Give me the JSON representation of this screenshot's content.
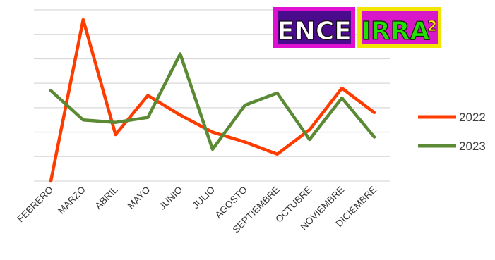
{
  "chart_data": {
    "type": "line",
    "categories": [
      "FEBRERO",
      "MARZO",
      "ABRIL",
      "MAYO",
      "JUNIO",
      "JULIO",
      "AGOSTO",
      "SEPTIEMBRE",
      "OCTUBRE",
      "NOVIEMBRE",
      "DICIEMBRE"
    ],
    "series": [
      {
        "name": "2022",
        "color": "#ff3c00",
        "values": [
          0,
          66,
          19,
          35,
          27,
          20,
          16,
          11,
          21,
          38,
          28
        ]
      },
      {
        "name": "2023",
        "color": "#5b8a35",
        "values": [
          37,
          25,
          24,
          26,
          52,
          13,
          31,
          36,
          17,
          34,
          18
        ]
      }
    ],
    "ylim": [
      0,
      70
    ],
    "grid": true,
    "legend_position": "right"
  },
  "logo": {
    "word1": "ENCE",
    "word2": "IRRA",
    "superscript": "2"
  }
}
